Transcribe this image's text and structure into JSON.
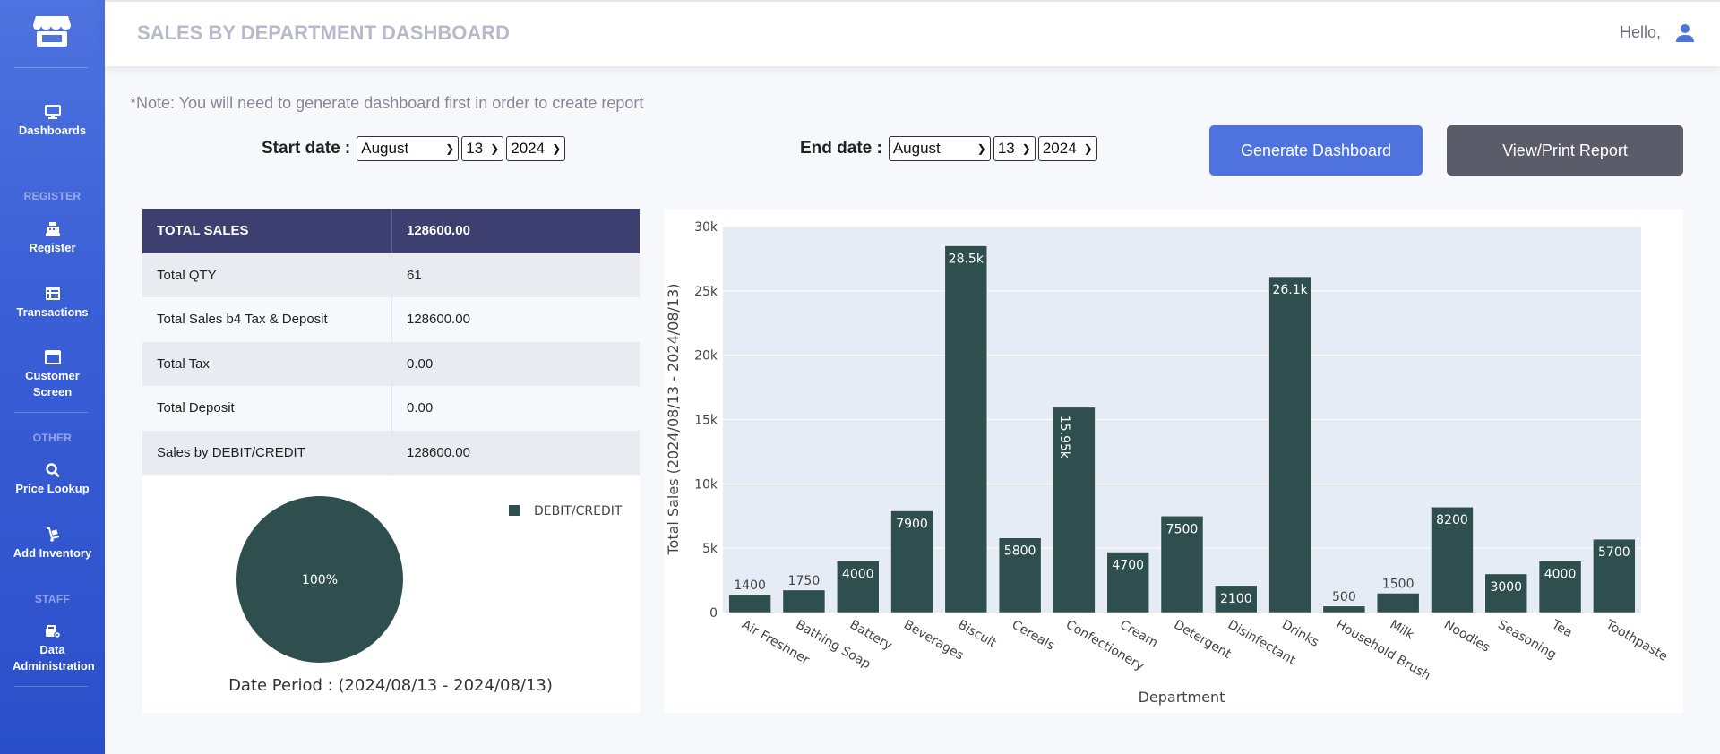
{
  "sidebar": {
    "items": [
      {
        "label": "Dashboards",
        "icon": "monitor-icon"
      },
      {
        "label": "Register",
        "icon": "cash-register-icon"
      },
      {
        "label": "Transactions",
        "icon": "list-icon"
      },
      {
        "label": "Customer Screen",
        "icon": "window-icon"
      },
      {
        "label": "Price Lookup",
        "icon": "search-icon"
      },
      {
        "label": "Add Inventory",
        "icon": "dolly-icon"
      },
      {
        "label": "Data Administration",
        "icon": "database-cog-icon"
      }
    ],
    "headings": {
      "register": "REGISTER",
      "other": "OTHER",
      "staff": "STAFF"
    }
  },
  "topbar": {
    "title": "SALES BY DEPARTMENT DASHBOARD",
    "greeting": "Hello,"
  },
  "note": "*Note: You will need to generate dashboard first in order to create report",
  "start_date": {
    "label": "Start date :",
    "month": "August",
    "day": "13",
    "year": "2024"
  },
  "end_date": {
    "label": "End date :",
    "month": "August",
    "day": "13",
    "year": "2024"
  },
  "buttons": {
    "generate": "Generate Dashboard",
    "report": "View/Print Report"
  },
  "summary": {
    "header": {
      "label": "TOTAL SALES",
      "value": "128600.00"
    },
    "rows": [
      {
        "label": "Total QTY",
        "value": "61"
      },
      {
        "label": "Total Sales b4 Tax & Deposit",
        "value": "128600.00"
      },
      {
        "label": "Total Tax",
        "value": "0.00"
      },
      {
        "label": "Total Deposit",
        "value": "0.00"
      },
      {
        "label": "Sales by DEBIT/CREDIT",
        "value": "128600.00"
      }
    ]
  },
  "colors": {
    "accent": "#4e73df",
    "bar": "#2f4f4f",
    "plot_bg": "#e5ecf6",
    "table_head": "#3c3f70"
  },
  "chart_data": [
    {
      "type": "pie",
      "labels": [
        "DEBIT/CREDIT"
      ],
      "values": [
        100
      ],
      "slice_label": "100%",
      "title": "Date Period : (2024/08/13 - 2024/08/13)",
      "legend": "top-right"
    },
    {
      "type": "bar",
      "categories": [
        "Air Freshner",
        "Bathing Soap",
        "Battery",
        "Beverages",
        "Biscuit",
        "Cereals",
        "Confectionery",
        "Cream",
        "Detergent",
        "Disinfectant",
        "Drinks",
        "Household Brush",
        "Milk",
        "Noodles",
        "Seasoning",
        "Tea",
        "Toothpaste"
      ],
      "values": [
        1400,
        1750,
        4000,
        7900,
        28500,
        5800,
        15950,
        4700,
        7500,
        2100,
        26100,
        500,
        1500,
        8200,
        3000,
        4000,
        5700
      ],
      "data_labels": [
        "1400",
        "1750",
        "4000",
        "7900",
        "28.5k",
        "5800",
        "15.95k",
        "4700",
        "7500",
        "2100",
        "26.1k",
        "500",
        "1500",
        "8200",
        "3000",
        "4000",
        "5700"
      ],
      "xlabel": "Department",
      "ylabel": "Total Sales (2024/08/13 - 2024/08/13)",
      "ylim": [
        0,
        30000
      ],
      "yticks": [
        "0",
        "5k",
        "10k",
        "15k",
        "20k",
        "25k",
        "30k"
      ],
      "grid": true
    }
  ]
}
